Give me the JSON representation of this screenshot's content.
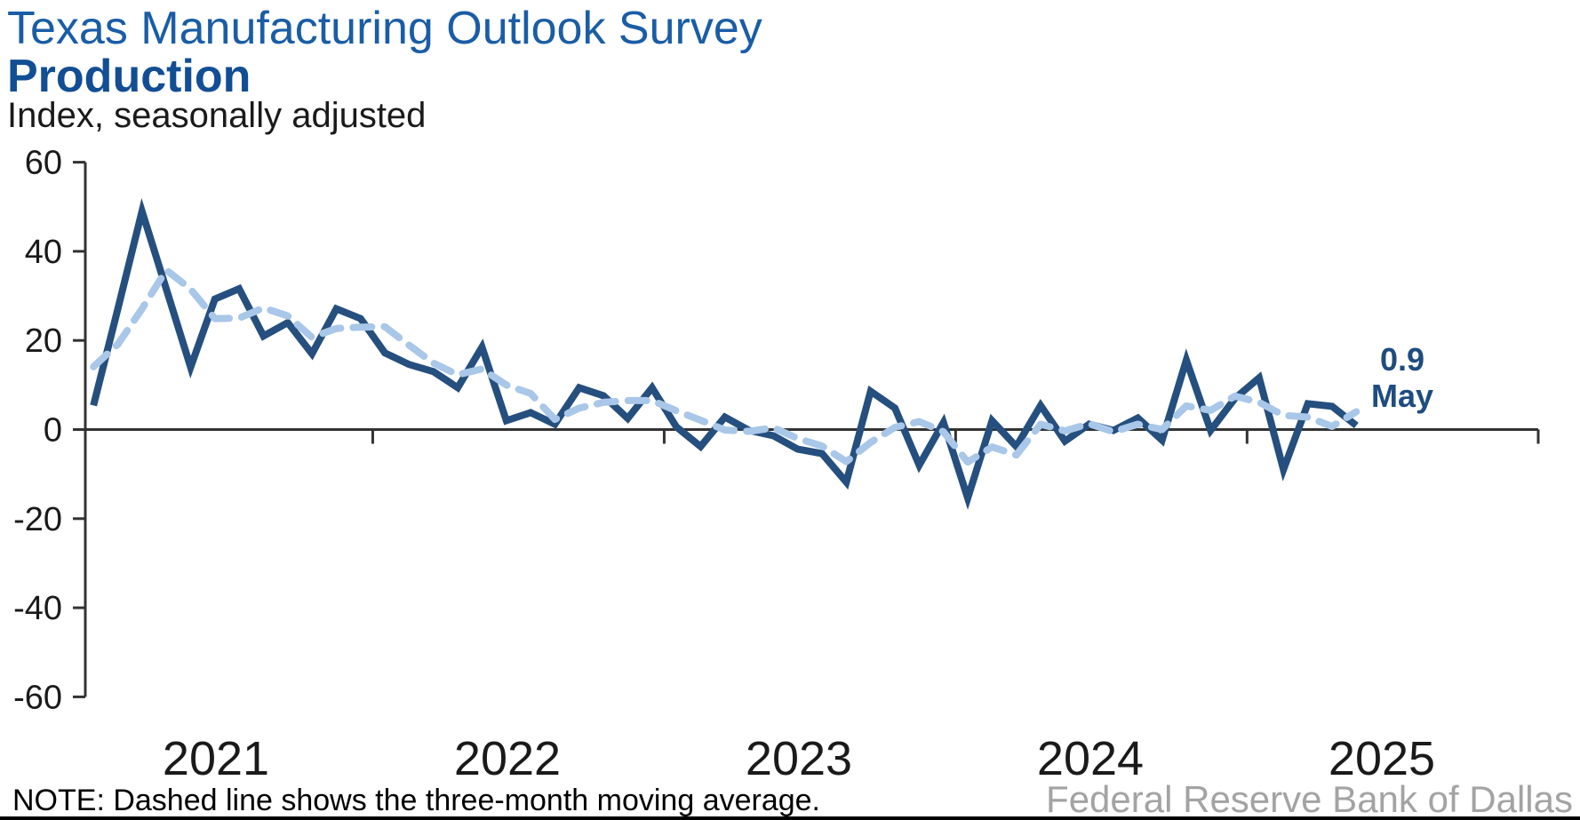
{
  "header": {
    "title": "Texas Manufacturing Outlook Survey",
    "subtitle": "Production",
    "unit_label": "Index, seasonally adjusted"
  },
  "annotation": {
    "value": "0.9",
    "month": "May"
  },
  "footer": {
    "note": "NOTE: Dashed line shows the three-month moving average.",
    "source": "Federal Reserve Bank of Dallas"
  },
  "colors": {
    "title_blue": "#1A5DA6",
    "subtitle_blue": "#124E94",
    "line_navy": "#254F7E",
    "ma_light_blue": "#A9C7E8",
    "axis_black": "#333333",
    "source_gray": "#A3A3A3",
    "annotation_blue": "#1E4C80"
  },
  "chart_data": {
    "type": "line",
    "title": "Texas Manufacturing Outlook Survey — Production",
    "ylabel": "Index, seasonally adjusted",
    "ylim": [
      -60,
      60
    ],
    "ytick_step": 20,
    "grid": false,
    "x_start": "2021-01",
    "x_end": "2025-05",
    "x_frequency": "monthly",
    "year_labels": [
      "2021",
      "2022",
      "2023",
      "2024",
      "2025"
    ],
    "legend_position": "none",
    "latest_point": {
      "month": "May",
      "year": 2025,
      "value": 0.9
    },
    "series": [
      {
        "name": "Production index (monthly)",
        "style": "solid",
        "color": "#254F7E",
        "values": [
          5.4,
          27.0,
          49.0,
          31.5,
          14.0,
          29.3,
          31.6,
          21.0,
          24.0,
          17.0,
          27.1,
          24.9,
          17.2,
          14.6,
          13.0,
          9.4,
          18.5,
          2.0,
          3.8,
          1.2,
          9.4,
          7.6,
          2.5,
          9.4,
          0.6,
          -3.8,
          2.8,
          -0.2,
          -1.4,
          -4.4,
          -5.4,
          -11.8,
          8.6,
          4.8,
          -8.0,
          1.6,
          -15.4,
          2.0,
          -3.8,
          5.4,
          -2.6,
          1.2,
          -0.2,
          2.6,
          -2.4,
          15.6,
          -0.2,
          7.0,
          11.6,
          -9.0,
          5.8,
          5.2,
          0.9
        ]
      },
      {
        "name": "Three-month moving average",
        "style": "dashed",
        "color": "#A9C7E8",
        "values": [
          14.1,
          19.1,
          27.1,
          35.8,
          31.5,
          24.9,
          25.0,
          27.3,
          25.5,
          20.7,
          22.7,
          23.0,
          23.1,
          18.9,
          14.9,
          12.3,
          13.6,
          10.0,
          8.1,
          2.3,
          4.8,
          6.1,
          6.5,
          6.5,
          4.2,
          2.1,
          -0.1,
          -0.4,
          0.4,
          -2.0,
          -3.7,
          -7.2,
          -2.9,
          0.5,
          1.8,
          -0.5,
          -7.3,
          -3.9,
          -5.7,
          1.2,
          -0.3,
          1.3,
          -0.5,
          1.2,
          0.0,
          5.3,
          4.3,
          7.5,
          6.1,
          3.2,
          2.8,
          0.7,
          4.0
        ]
      }
    ]
  }
}
